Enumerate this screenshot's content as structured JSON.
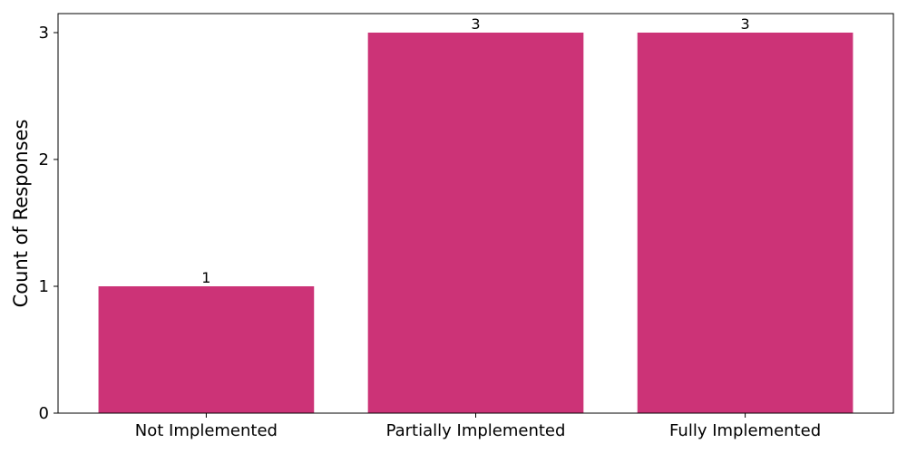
{
  "chart_data": {
    "type": "bar",
    "categories": [
      "Not Implemented",
      "Partially Implemented",
      "Fully Implemented"
    ],
    "values": [
      1,
      3,
      3
    ],
    "data_labels": [
      "1",
      "3",
      "3"
    ],
    "title": "",
    "xlabel": "",
    "ylabel": "Count of Responses",
    "ylim": [
      0,
      3.15
    ],
    "yticks": [
      0,
      1,
      2,
      3
    ],
    "grid": false,
    "bar_color": "#CC3377"
  }
}
